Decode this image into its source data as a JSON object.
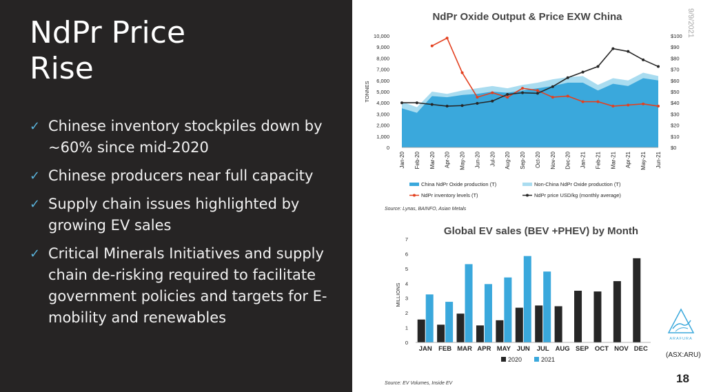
{
  "slide": {
    "title_lines": [
      "NdPr Price",
      "Rise"
    ],
    "bullets": [
      "Chinese inventory stockpiles down by ~60% since mid-2020",
      "Chinese producers near full capacity",
      "Supply chain issues highlighted by growing EV sales",
      "Critical Minerals Initiatives and supply chain de-risking required to facilitate government policies and targets for E-mobility and renewables"
    ],
    "bullet_icon": "checkmark-icon",
    "date": "9/9/2021",
    "ticker": "(ASX:ARU)",
    "page_number": "18",
    "logo_text": "ARAFURA",
    "logo_icon": "arafura-logo-icon"
  },
  "colors": {
    "left_panel_bg": "#262424",
    "check": "#5ab4dc",
    "china_area": "#3aa8dc",
    "nonchina_area": "#a9dcf0",
    "inventory_line": "#e3401f",
    "price_line": "#262626",
    "bar_2020": "#262626",
    "bar_2021": "#3aa8dc"
  },
  "chart_data": [
    {
      "type": "area",
      "title": "NdPr Oxide Output & Price EXW China",
      "ylabel": "TONNES",
      "ylim": [
        0,
        10000
      ],
      "y_ticks": [
        "0",
        "1,000",
        "2,000",
        "3,000",
        "4,000",
        "5,000",
        "6,000",
        "7,000",
        "8,000",
        "9,000",
        "10,000"
      ],
      "y2lim": [
        0,
        100
      ],
      "y2_ticks": [
        "$0",
        "$10",
        "$20",
        "$30",
        "$40",
        "$50",
        "$60",
        "$70",
        "$80",
        "$90",
        "$100"
      ],
      "categories": [
        "Jan-20",
        "Feb-20",
        "Mar-20",
        "Apr-20",
        "May-20",
        "Jun-20",
        "Jul-20",
        "Aug-20",
        "Sep-20",
        "Oct-20",
        "Nov-20",
        "Dec-20",
        "Jan-21",
        "Feb-21",
        "Mar-21",
        "Apr-21",
        "May-21",
        "Jun-21"
      ],
      "series": [
        {
          "name": "China NdPr Oxide production (T)",
          "kind": "area",
          "values": [
            3500,
            3100,
            4600,
            4500,
            4700,
            4800,
            5000,
            4900,
            5100,
            5300,
            5500,
            5800,
            5800,
            5100,
            5700,
            5500,
            6200,
            6000
          ]
        },
        {
          "name": "Non-China NdPr Oxide production (T)",
          "kind": "area",
          "values": [
            600,
            500,
            400,
            300,
            400,
            500,
            500,
            400,
            500,
            500,
            600,
            500,
            600,
            500,
            500,
            500,
            500,
            400
          ]
        },
        {
          "name": "NdPr inventory levels (T)",
          "kind": "line",
          "axis": "left",
          "values": [
            null,
            null,
            9100,
            9800,
            6700,
            4500,
            4900,
            4500,
            5300,
            5100,
            4500,
            4600,
            4100,
            4100,
            3700,
            3800,
            3900,
            3700
          ]
        },
        {
          "name": "NdPr price USD/kg (monthly average)",
          "kind": "line",
          "axis": "right",
          "values": [
            40,
            40,
            38.5,
            37,
            37.5,
            39.5,
            41.5,
            47.5,
            49,
            48.5,
            54.5,
            62.5,
            67.5,
            72.5,
            88.5,
            86,
            78.5,
            72.5
          ]
        }
      ],
      "source": "Source: Lynas, BAINFO, Asian Metals",
      "legend": "bottom"
    },
    {
      "type": "bar",
      "title": "Global EV sales (BEV +PHEV) by Month",
      "ylabel": "MILLIONS",
      "ylim": [
        0,
        7
      ],
      "y_ticks": [
        "0",
        "1",
        "2",
        "3",
        "4",
        "5",
        "6",
        "7"
      ],
      "categories": [
        "JAN",
        "FEB",
        "MAR",
        "APR",
        "MAY",
        "JUN",
        "JUL",
        "AUG",
        "SEP",
        "OCT",
        "NOV",
        "DEC"
      ],
      "series": [
        {
          "name": "2020",
          "values": [
            1.55,
            1.2,
            1.95,
            1.15,
            1.5,
            2.35,
            2.5,
            2.45,
            3.5,
            3.45,
            4.15,
            5.7
          ]
        },
        {
          "name": "2021",
          "values": [
            3.25,
            2.75,
            5.3,
            3.95,
            4.4,
            5.85,
            4.8,
            null,
            null,
            null,
            null,
            null
          ]
        }
      ],
      "source": "Source: EV Volumes, Inside EV",
      "legend": "bottom"
    }
  ]
}
